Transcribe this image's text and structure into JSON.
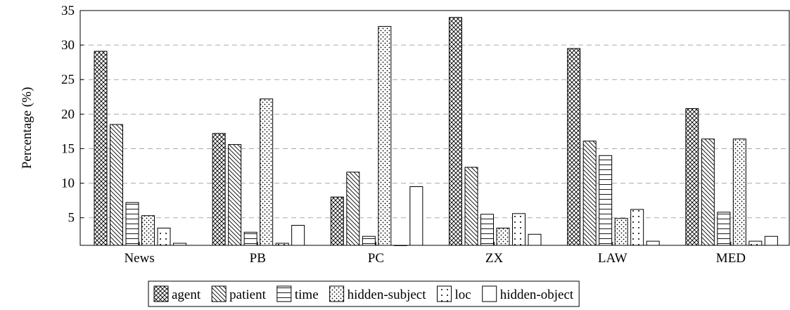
{
  "chart_data": {
    "type": "bar",
    "ylabel": "Percentage (%)",
    "xlabel": "",
    "ylim": [
      1,
      35
    ],
    "yticks": [
      5,
      10,
      15,
      20,
      25,
      30,
      35
    ],
    "grid": "horizontal-dashed",
    "legend_position": "bottom",
    "categories": [
      "News",
      "PB",
      "PC",
      "ZX",
      "LAW",
      "MED"
    ],
    "series": [
      {
        "name": "agent",
        "pattern": "crosshatch",
        "values": [
          29.1,
          17.2,
          8.0,
          34.0,
          29.5,
          20.8
        ]
      },
      {
        "name": "patient",
        "pattern": "diagonal",
        "values": [
          18.5,
          15.6,
          11.6,
          12.3,
          16.1,
          16.4
        ]
      },
      {
        "name": "time",
        "pattern": "horizontal",
        "values": [
          7.2,
          2.9,
          2.3,
          5.5,
          14.0,
          5.8
        ]
      },
      {
        "name": "hidden-subject",
        "pattern": "dots-dense",
        "values": [
          5.3,
          22.2,
          32.7,
          3.5,
          4.9,
          16.4
        ]
      },
      {
        "name": "loc",
        "pattern": "dots-sparse",
        "values": [
          3.5,
          1.3,
          1.0,
          5.6,
          6.2,
          1.6
        ]
      },
      {
        "name": "hidden-object",
        "pattern": "empty",
        "values": [
          1.3,
          3.9,
          9.5,
          2.6,
          1.6,
          2.3
        ]
      }
    ]
  }
}
